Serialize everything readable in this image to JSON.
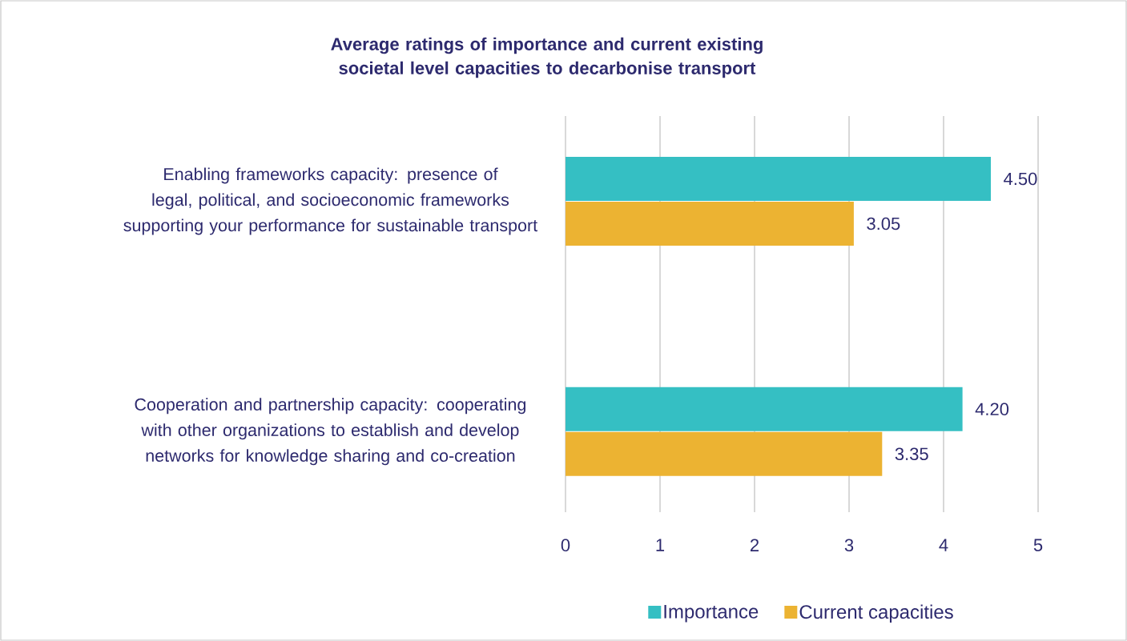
{
  "chart_data": {
    "type": "bar",
    "orientation": "horizontal",
    "title": "Average ratings of importance and current existing societal level capacities to decarbonise transport",
    "categories": [
      "Enabling frameworks capacity: presence of legal, political, and socioeconomic frameworks supporting your performance for sustainable transport",
      "Cooperation and partnership capacity: cooperating with other organizations to establish and develop networks for knowledge sharing and co-creation"
    ],
    "series": [
      {
        "name": "Importance",
        "color": "#35bfc3",
        "values": [
          4.5,
          4.2
        ],
        "value_labels": [
          "4.50",
          "4.20"
        ]
      },
      {
        "name": "Current capacities",
        "color": "#ecb332",
        "values": [
          3.05,
          3.35
        ],
        "value_labels": [
          "3.05",
          "3.35"
        ]
      }
    ],
    "xlim": [
      0,
      5
    ],
    "xticks": [
      0,
      1,
      2,
      3,
      4,
      5
    ],
    "grid": "x",
    "legend": "bottom"
  }
}
